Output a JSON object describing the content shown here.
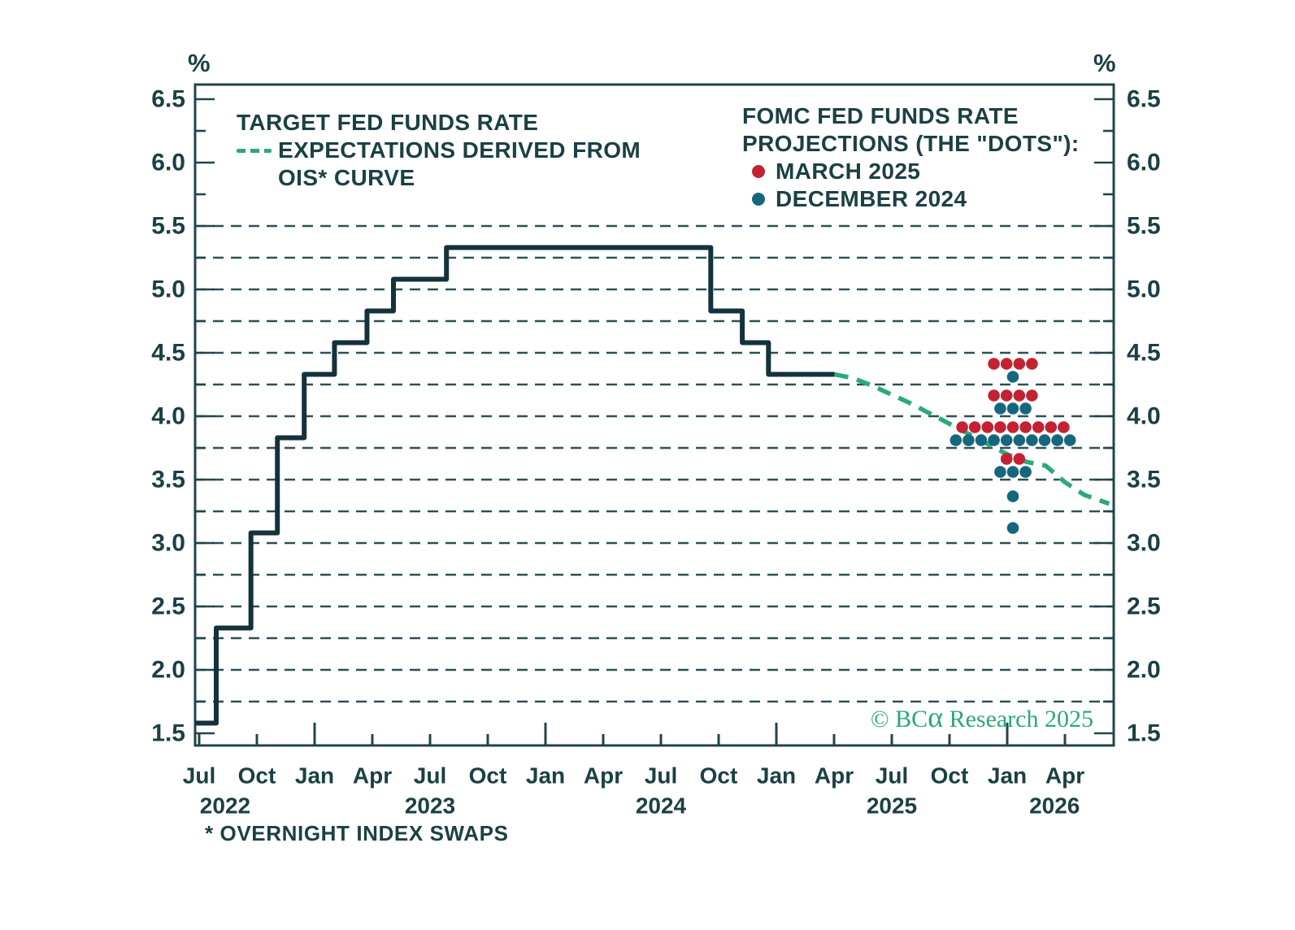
{
  "axes": {
    "unit_left": "%",
    "unit_right": "%",
    "y_labels": [
      "6.5",
      "6.0",
      "5.5",
      "5.0",
      "4.5",
      "4.0",
      "3.5",
      "3.0",
      "2.5",
      "2.0",
      "1.5"
    ],
    "x_month_labels": [
      "Jul",
      "Oct",
      "Jan",
      "Apr",
      "Jul",
      "Oct",
      "Jan",
      "Apr",
      "Jul",
      "Oct",
      "Jan",
      "Apr",
      "Jul",
      "Oct",
      "Jan",
      "Apr"
    ],
    "x_year_labels": [
      "2022",
      "2023",
      "2024",
      "2025",
      "2026"
    ]
  },
  "legend_left": {
    "line1": "TARGET FED FUNDS RATE",
    "line2": "EXPECTATIONS DERIVED FROM",
    "line3": "OIS* CURVE"
  },
  "legend_right": {
    "title1": "FOMC FED FUNDS RATE",
    "title2": "PROJECTIONS (THE \"DOTS\"):",
    "items": [
      {
        "label": "MARCH 2025",
        "color": "#C32233"
      },
      {
        "label": "DECEMBER 2024",
        "color": "#16677E"
      }
    ]
  },
  "copyright": {
    "prefix": "© BC",
    "alpha": "α",
    "suffix": " Research 2025"
  },
  "footnote": "* OVERNIGHT INDEX SWAPS",
  "colors": {
    "text": "#1B4045",
    "axis": "#20454B",
    "gridline": "#2C5058",
    "step_line": "#14323B",
    "ois_green": "#2BAA79",
    "march_red": "#C32233",
    "december_blue": "#16677E",
    "copyright_green": "#2AA878"
  },
  "chart_data": {
    "type": "line",
    "title": "Target fed funds rate vs FOMC projections",
    "ylabel": "%",
    "ylim": [
      1.5,
      6.5
    ],
    "xrange": [
      "2022-07",
      "2026-06"
    ],
    "grid": "dashed horizontal lines every 0.25 from 1.75 to 5.5",
    "legend_position": "top-left and top-right inside plot",
    "series": [
      {
        "name": "Target fed funds rate",
        "style": "step",
        "color": "#14323B",
        "steps": [
          {
            "date": "2022-07-01",
            "rate": 1.58
          },
          {
            "date": "2022-07-28",
            "rate": 2.33
          },
          {
            "date": "2022-09-22",
            "rate": 3.08
          },
          {
            "date": "2022-11-03",
            "rate": 3.83
          },
          {
            "date": "2022-12-15",
            "rate": 4.33
          },
          {
            "date": "2023-02-02",
            "rate": 4.58
          },
          {
            "date": "2023-03-23",
            "rate": 4.83
          },
          {
            "date": "2023-05-04",
            "rate": 5.08
          },
          {
            "date": "2023-07-27",
            "rate": 5.33
          },
          {
            "date": "2024-09-19",
            "rate": 4.83
          },
          {
            "date": "2024-11-08",
            "rate": 4.58
          },
          {
            "date": "2024-12-19",
            "rate": 4.33
          }
        ],
        "end_date": "2025-04-02"
      },
      {
        "name": "Expectations derived from OIS curve",
        "style": "dashed",
        "color": "#2BAA79",
        "points": [
          [
            "2025-04-02",
            4.33
          ],
          [
            "2025-05-01",
            4.3
          ],
          [
            "2025-06-01",
            4.24
          ],
          [
            "2025-07-01",
            4.17
          ],
          [
            "2025-08-01",
            4.1
          ],
          [
            "2025-09-01",
            4.02
          ],
          [
            "2025-10-01",
            3.94
          ],
          [
            "2025-11-01",
            3.86
          ],
          [
            "2025-12-01",
            3.78
          ],
          [
            "2026-01-01",
            3.7
          ],
          [
            "2026-02-01",
            3.64
          ],
          [
            "2026-03-01",
            3.61
          ],
          [
            "2026-04-01",
            3.48
          ],
          [
            "2026-05-01",
            3.38
          ],
          [
            "2026-06-10",
            3.31
          ]
        ]
      },
      {
        "name": "FOMC projections March 2025",
        "style": "dots",
        "color": "#C32233",
        "plotted_at": "2026-01",
        "projections": [
          {
            "rate": 4.375,
            "count": 4
          },
          {
            "rate": 4.125,
            "count": 4
          },
          {
            "rate": 3.875,
            "count": 9
          },
          {
            "rate": 3.625,
            "count": 2
          }
        ]
      },
      {
        "name": "FOMC projections December 2024",
        "style": "dots",
        "color": "#16677E",
        "plotted_at": "2026-01",
        "projections": [
          {
            "rate": 4.375,
            "count": 1
          },
          {
            "rate": 4.125,
            "count": 3
          },
          {
            "rate": 3.875,
            "count": 10
          },
          {
            "rate": 3.625,
            "count": 3
          },
          {
            "rate": 3.375,
            "count": 1
          },
          {
            "rate": 3.125,
            "count": 1
          }
        ]
      }
    ]
  }
}
